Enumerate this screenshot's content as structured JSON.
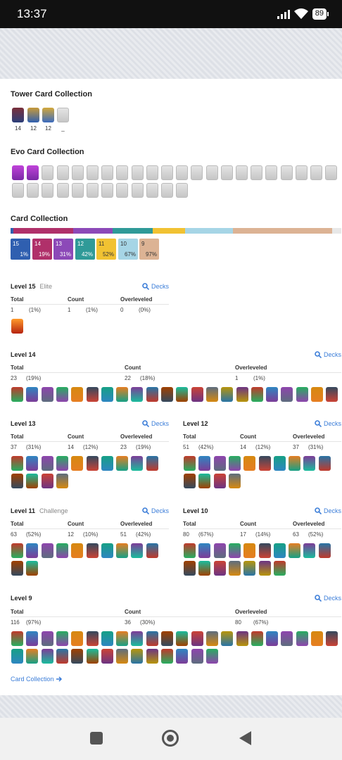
{
  "status": {
    "time": "13:37",
    "battery": "89"
  },
  "tower": {
    "title": "Tower Card Collection",
    "counts": [
      "14",
      "12",
      "12",
      "_"
    ]
  },
  "evo": {
    "title": "Evo Card Collection"
  },
  "collection": {
    "title": "Card Collection",
    "chips": [
      {
        "level": "15",
        "pct": "1%",
        "color": "#2f5fb0"
      },
      {
        "level": "14",
        "pct": "19%",
        "color": "#b0306a"
      },
      {
        "level": "13",
        "pct": "31%",
        "color": "#8c49b8"
      },
      {
        "level": "12",
        "pct": "42%",
        "color": "#2f9a98"
      },
      {
        "level": "11",
        "pct": "52%",
        "color": "#f1c232"
      },
      {
        "level": "10",
        "pct": "67%",
        "color": "#a6d5e6"
      },
      {
        "level": "9",
        "pct": "97%",
        "color": "#dcb394"
      }
    ]
  },
  "levels": {
    "l15": {
      "title": "Level 15",
      "sub": "Elite",
      "decks": "Decks",
      "h_total": "Total",
      "h_count": "Count",
      "h_over": "Overleveled",
      "total": "1",
      "total_pct": "(1%)",
      "count": "1",
      "count_pct": "(1%)",
      "over": "0",
      "over_pct": "(0%)"
    },
    "l14": {
      "title": "Level 14",
      "decks": "Decks",
      "h_total": "Total",
      "h_count": "Count",
      "h_over": "Overleveled",
      "total": "23",
      "total_pct": "(19%)",
      "count": "22",
      "count_pct": "(18%)",
      "over": "1",
      "over_pct": "(1%)"
    },
    "l13": {
      "title": "Level 13",
      "decks": "Decks",
      "h_total": "Total",
      "h_count": "Count",
      "h_over": "Overleveled",
      "total": "37",
      "total_pct": "(31%)",
      "count": "14",
      "count_pct": "(12%)",
      "over": "23",
      "over_pct": "(19%)"
    },
    "l12": {
      "title": "Level 12",
      "decks": "Decks",
      "h_total": "Total",
      "h_count": "Count",
      "h_over": "Overleveled",
      "total": "51",
      "total_pct": "(42%)",
      "count": "14",
      "count_pct": "(12%)",
      "over": "37",
      "over_pct": "(31%)"
    },
    "l11": {
      "title": "Level 11",
      "sub": "Challenge",
      "decks": "Decks",
      "h_total": "Total",
      "h_count": "Count",
      "h_over": "Overleveled",
      "total": "63",
      "total_pct": "(52%)",
      "count": "12",
      "count_pct": "(10%)",
      "over": "51",
      "over_pct": "(42%)"
    },
    "l10": {
      "title": "Level 10",
      "decks": "Decks",
      "h_total": "Total",
      "h_count": "Count",
      "h_over": "Overleveled",
      "total": "80",
      "total_pct": "(67%)",
      "count": "17",
      "count_pct": "(14%)",
      "over": "63",
      "over_pct": "(52%)"
    },
    "l9": {
      "title": "Level 9",
      "decks": "Decks",
      "h_total": "Total",
      "h_count": "Count",
      "h_over": "Overleveled",
      "total": "116",
      "total_pct": "(97%)",
      "count": "36",
      "count_pct": "(30%)",
      "over": "80",
      "over_pct": "(67%)"
    }
  },
  "footer_link": "Card Collection"
}
